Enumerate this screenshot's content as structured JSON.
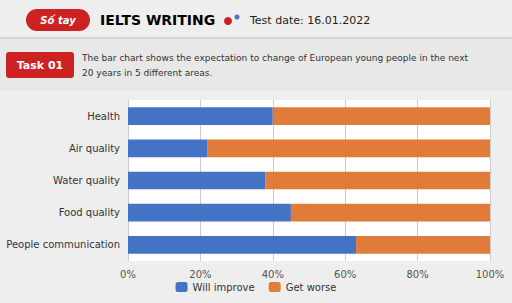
{
  "chart_data": {
    "type": "bar",
    "title": "IELTS WRITING",
    "subtitle": "The bar chart shows the expectation to change of European young people in the next\n20 years in 5 different areas.",
    "annotations": [
      "Số tay",
      "Test date: 16.01.2022",
      "Task 01"
    ],
    "orientation": "horizontal",
    "stacked": true,
    "categories": [
      "People communication",
      "Food quality",
      "Water quality",
      "Air quality",
      "Health"
    ],
    "series": [
      {
        "name": "Will improve",
        "color": "#4472C4",
        "values": [
          63,
          45,
          38,
          22,
          40
        ]
      },
      {
        "name": "Get worse",
        "color": "#E07B39",
        "values": [
          37,
          55,
          62,
          78,
          60
        ]
      }
    ],
    "xlim": [
      0,
      100
    ],
    "xticks": [
      {
        "value": 0,
        "label": "0%"
      },
      {
        "value": 20,
        "label": "20%"
      },
      {
        "value": 40,
        "label": "40%"
      },
      {
        "value": 60,
        "label": "60%"
      },
      {
        "value": 80,
        "label": "80%"
      },
      {
        "value": 100,
        "label": "100%"
      }
    ],
    "grid": true,
    "legend": "bottom"
  }
}
